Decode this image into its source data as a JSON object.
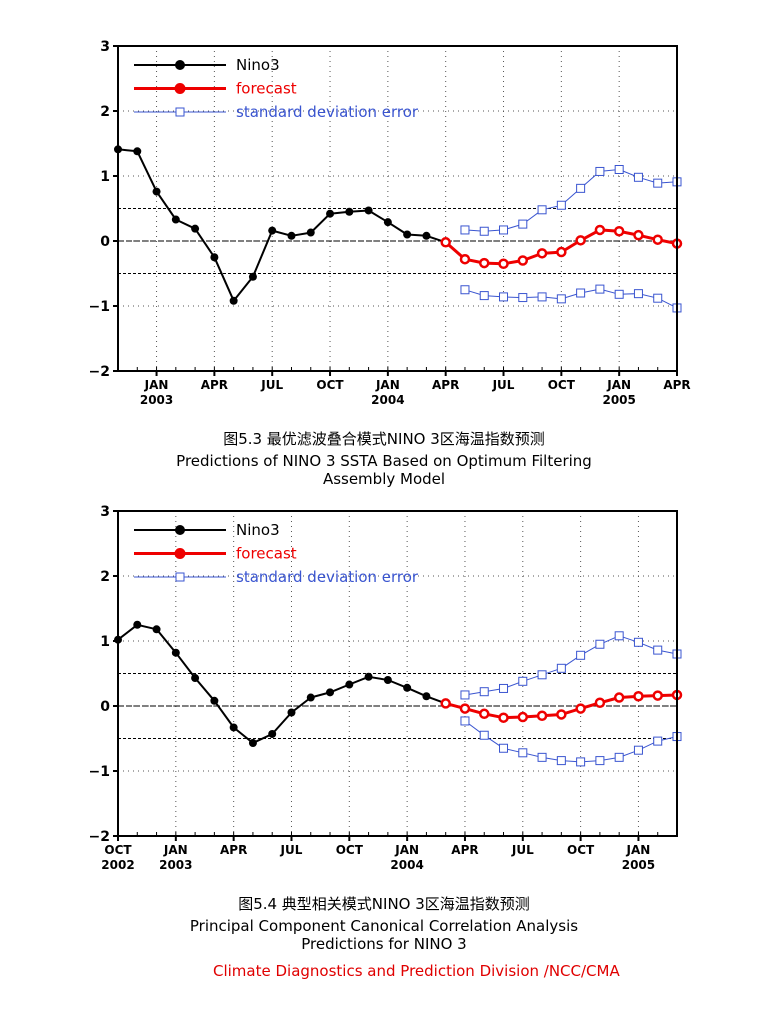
{
  "colors": {
    "observed": "#000000",
    "forecast": "#ee0000",
    "error": "#3a55d0",
    "credit": "#e00000"
  },
  "legend": [
    "Nino3",
    "forecast",
    "standard deviation error"
  ],
  "credit": "Climate Diagnostics and Prediction Division /NCC/CMA",
  "chart_data": [
    {
      "type": "line",
      "caption_cn": "图5.3 最优滤波叠合模式NINO 3区海温指数预测",
      "caption_en1": "Predictions of NINO 3 SSTA Based on Optimum Filtering",
      "caption_en2": "Assembly Model",
      "x_start": "2002-11",
      "x_end": "2005-04",
      "ylim": [
        -2,
        3
      ],
      "yticks": [
        "3",
        "2",
        "1",
        "0",
        "-1",
        "-2"
      ],
      "xticks": [
        {
          "month": "2003-01",
          "label": "JAN",
          "year": "2003"
        },
        {
          "month": "2003-04",
          "label": "APR",
          "year": ""
        },
        {
          "month": "2003-07",
          "label": "JUL",
          "year": ""
        },
        {
          "month": "2003-10",
          "label": "OCT",
          "year": ""
        },
        {
          "month": "2004-01",
          "label": "JAN",
          "year": "2004"
        },
        {
          "month": "2004-04",
          "label": "APR",
          "year": ""
        },
        {
          "month": "2004-07",
          "label": "JUL",
          "year": ""
        },
        {
          "month": "2004-10",
          "label": "OCT",
          "year": ""
        },
        {
          "month": "2005-01",
          "label": "JAN",
          "year": "2005"
        },
        {
          "month": "2005-04",
          "label": "APR",
          "year": ""
        }
      ],
      "reference_lines": [
        0.5,
        0,
        -0.5
      ],
      "grid": true,
      "legend_position": "top-left",
      "series": [
        {
          "name": "Nino3",
          "kind": "observed",
          "points": [
            [
              "2002-11",
              1.41
            ],
            [
              "2002-12",
              1.38
            ],
            [
              "2003-01",
              0.76
            ],
            [
              "2003-02",
              0.33
            ],
            [
              "2003-03",
              0.19
            ],
            [
              "2003-04",
              -0.25
            ],
            [
              "2003-05",
              -0.92
            ],
            [
              "2003-06",
              -0.55
            ],
            [
              "2003-07",
              0.16
            ],
            [
              "2003-08",
              0.08
            ],
            [
              "2003-09",
              0.13
            ],
            [
              "2003-10",
              0.42
            ],
            [
              "2003-11",
              0.45
            ],
            [
              "2003-12",
              0.47
            ],
            [
              "2004-01",
              0.29
            ],
            [
              "2004-02",
              0.1
            ],
            [
              "2004-03",
              0.08
            ],
            [
              "2004-04",
              -0.02
            ]
          ]
        },
        {
          "name": "forecast",
          "kind": "forecast",
          "points": [
            [
              "2004-04",
              -0.02
            ],
            [
              "2004-05",
              -0.28
            ],
            [
              "2004-06",
              -0.34
            ],
            [
              "2004-07",
              -0.35
            ],
            [
              "2004-08",
              -0.3
            ],
            [
              "2004-09",
              -0.19
            ],
            [
              "2004-10",
              -0.17
            ],
            [
              "2004-11",
              0.01
            ],
            [
              "2004-12",
              0.17
            ],
            [
              "2005-01",
              0.15
            ],
            [
              "2005-02",
              0.09
            ],
            [
              "2005-03",
              0.02
            ],
            [
              "2005-04",
              -0.04
            ]
          ]
        },
        {
          "name": "standard deviation error",
          "kind": "error",
          "points": [
            [
              "2004-05",
              0.17
            ],
            [
              "2004-06",
              0.15
            ],
            [
              "2004-07",
              0.17
            ],
            [
              "2004-08",
              0.26
            ],
            [
              "2004-09",
              0.48
            ],
            [
              "2004-10",
              0.55
            ],
            [
              "2004-11",
              0.81
            ],
            [
              "2004-12",
              1.07
            ],
            [
              "2005-01",
              1.1
            ],
            [
              "2005-02",
              0.98
            ],
            [
              "2005-03",
              0.89
            ],
            [
              "2005-04",
              0.91
            ]
          ]
        },
        {
          "name": "standard deviation error",
          "kind": "error",
          "points": [
            [
              "2004-05",
              -0.75
            ],
            [
              "2004-06",
              -0.84
            ],
            [
              "2004-07",
              -0.86
            ],
            [
              "2004-08",
              -0.87
            ],
            [
              "2004-09",
              -0.86
            ],
            [
              "2004-10",
              -0.89
            ],
            [
              "2004-11",
              -0.8
            ],
            [
              "2004-12",
              -0.74
            ],
            [
              "2005-01",
              -0.82
            ],
            [
              "2005-02",
              -0.81
            ],
            [
              "2005-03",
              -0.88
            ],
            [
              "2005-04",
              -1.03
            ]
          ]
        }
      ]
    },
    {
      "type": "line",
      "caption_cn": "图5.4 典型相关模式NINO 3区海温指数预测",
      "caption_en1": "Principal Component Canonical Correlation Analysis",
      "caption_en2": "Predictions for NINO 3",
      "x_start": "2002-10",
      "x_end": "2005-03",
      "ylim": [
        -2,
        3
      ],
      "yticks": [
        "3",
        "2",
        "1",
        "0",
        "-1",
        "-2"
      ],
      "xticks": [
        {
          "month": "2002-10",
          "label": "OCT",
          "year": "2002"
        },
        {
          "month": "2003-01",
          "label": "JAN",
          "year": "2003"
        },
        {
          "month": "2003-04",
          "label": "APR",
          "year": ""
        },
        {
          "month": "2003-07",
          "label": "JUL",
          "year": ""
        },
        {
          "month": "2003-10",
          "label": "OCT",
          "year": ""
        },
        {
          "month": "2004-01",
          "label": "JAN",
          "year": "2004"
        },
        {
          "month": "2004-04",
          "label": "APR",
          "year": ""
        },
        {
          "month": "2004-07",
          "label": "JUL",
          "year": ""
        },
        {
          "month": "2004-10",
          "label": "OCT",
          "year": ""
        },
        {
          "month": "2005-01",
          "label": "JAN",
          "year": "2005"
        }
      ],
      "reference_lines": [
        0.5,
        0,
        -0.5
      ],
      "grid": true,
      "legend_position": "top-left",
      "series": [
        {
          "name": "Nino3",
          "kind": "observed",
          "points": [
            [
              "2002-10",
              1.02
            ],
            [
              "2002-11",
              1.25
            ],
            [
              "2002-12",
              1.18
            ],
            [
              "2003-01",
              0.82
            ],
            [
              "2003-02",
              0.43
            ],
            [
              "2003-03",
              0.08
            ],
            [
              "2003-04",
              -0.33
            ],
            [
              "2003-05",
              -0.57
            ],
            [
              "2003-06",
              -0.43
            ],
            [
              "2003-07",
              -0.1
            ],
            [
              "2003-08",
              0.13
            ],
            [
              "2003-09",
              0.21
            ],
            [
              "2003-10",
              0.33
            ],
            [
              "2003-11",
              0.45
            ],
            [
              "2003-12",
              0.4
            ],
            [
              "2004-01",
              0.28
            ],
            [
              "2004-02",
              0.15
            ],
            [
              "2004-03",
              0.04
            ]
          ]
        },
        {
          "name": "forecast",
          "kind": "forecast",
          "points": [
            [
              "2004-03",
              0.04
            ],
            [
              "2004-04",
              -0.04
            ],
            [
              "2004-05",
              -0.12
            ],
            [
              "2004-06",
              -0.18
            ],
            [
              "2004-07",
              -0.17
            ],
            [
              "2004-08",
              -0.15
            ],
            [
              "2004-09",
              -0.13
            ],
            [
              "2004-10",
              -0.04
            ],
            [
              "2004-11",
              0.05
            ],
            [
              "2004-12",
              0.13
            ],
            [
              "2005-01",
              0.15
            ],
            [
              "2005-02",
              0.16
            ],
            [
              "2005-03",
              0.17
            ]
          ]
        },
        {
          "name": "standard deviation error",
          "kind": "error",
          "points": [
            [
              "2004-04",
              0.17
            ],
            [
              "2004-05",
              0.22
            ],
            [
              "2004-06",
              0.27
            ],
            [
              "2004-07",
              0.38
            ],
            [
              "2004-08",
              0.48
            ],
            [
              "2004-09",
              0.58
            ],
            [
              "2004-10",
              0.78
            ],
            [
              "2004-11",
              0.95
            ],
            [
              "2004-12",
              1.08
            ],
            [
              "2005-01",
              0.98
            ],
            [
              "2005-02",
              0.86
            ],
            [
              "2005-03",
              0.8
            ]
          ]
        },
        {
          "name": "standard deviation error",
          "kind": "error",
          "points": [
            [
              "2004-04",
              -0.23
            ],
            [
              "2004-05",
              -0.45
            ],
            [
              "2004-06",
              -0.65
            ],
            [
              "2004-07",
              -0.72
            ],
            [
              "2004-08",
              -0.79
            ],
            [
              "2004-09",
              -0.84
            ],
            [
              "2004-10",
              -0.86
            ],
            [
              "2004-11",
              -0.84
            ],
            [
              "2004-12",
              -0.79
            ],
            [
              "2005-01",
              -0.68
            ],
            [
              "2005-02",
              -0.54
            ],
            [
              "2005-03",
              -0.47
            ]
          ]
        }
      ]
    }
  ]
}
